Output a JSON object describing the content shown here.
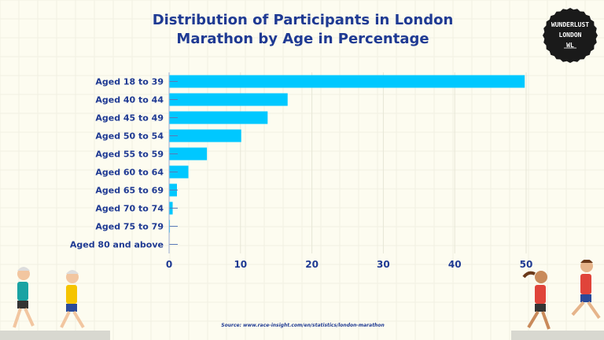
{
  "header": {
    "title_line1": "Distribution of Participants in London",
    "title_line2": "Marathon by Age in Percentage"
  },
  "logo": {
    "line1": "WUNDERLUST",
    "line2": "LONDON",
    "line3": "WL"
  },
  "source": "Source: www.race-insight.com/en/statistics/london-marathon",
  "colors": {
    "bar": "#00c8ff",
    "text": "#1f3a93",
    "background": "#fdfcf0"
  },
  "chart_data": {
    "type": "bar",
    "orientation": "horizontal",
    "title": "Distribution of Participants in London Marathon by Age in Percentage",
    "categories": [
      "Aged 18 to 39",
      "Aged 40 to 44",
      "Aged 45 to 49",
      "Aged 50 to 54",
      "Aged 55 to 59",
      "Aged 60 to 64",
      "Aged 65 to 69",
      "Aged 70 to 74",
      "Aged 75 to 79",
      "Aged 80 and above"
    ],
    "values": [
      49.8,
      16.6,
      13.8,
      10.1,
      5.3,
      2.7,
      1.1,
      0.5,
      0.1,
      0.02
    ],
    "xlim": [
      0,
      50
    ],
    "xticks": [
      0,
      10,
      20,
      30,
      40,
      50
    ],
    "grid": true,
    "legend": "none"
  }
}
